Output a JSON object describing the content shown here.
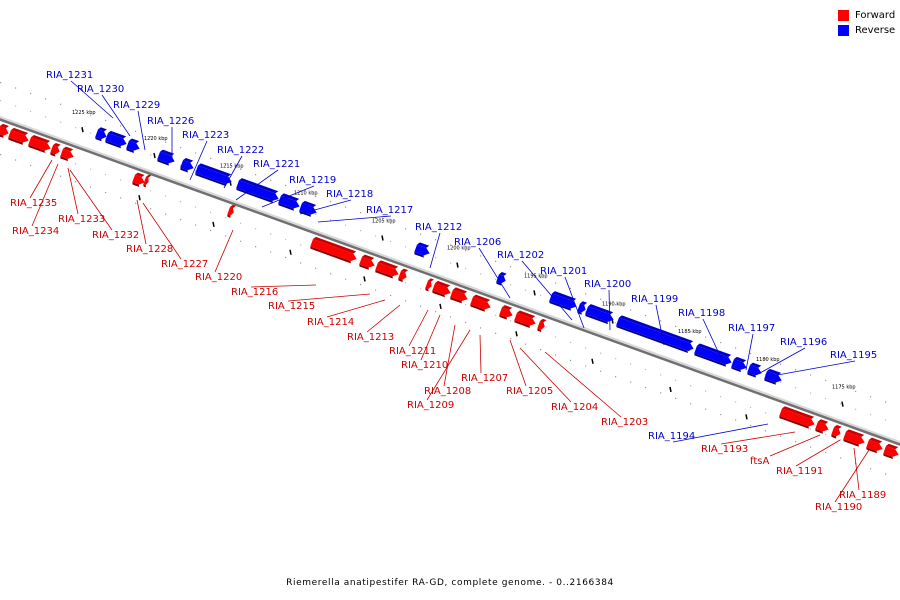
{
  "caption": "Riemerella anatipestifer RA-GD, complete genome. - 0..2166384",
  "legend": {
    "forward_label": "Forward",
    "reverse_label": "Reverse",
    "forward_color": "#ff0000",
    "reverse_color": "#0000ff"
  },
  "colors": {
    "forward": "#ff0000",
    "reverse": "#0000ff",
    "label_forward": "#cc0000",
    "label_reverse": "#0000cc"
  },
  "ticks": [
    "1225 kbp",
    "1220 kbp",
    "1215 kbp",
    "1210 kbp",
    "1205 kbp",
    "1200 kbp",
    "1195 kbp",
    "1190 kbp",
    "1185 kbp",
    "1180 kbp",
    "1175 kbp"
  ],
  "genes_reverse": [
    "RIA_1231",
    "RIA_1230",
    "RIA_1229",
    "RIA_1226",
    "RIA_1223",
    "RIA_1222",
    "RIA_1221",
    "RIA_1219",
    "RIA_1218",
    "RIA_1217",
    "RIA_1212",
    "RIA_1206",
    "RIA_1202",
    "RIA_1201",
    "RIA_1200",
    "RIA_1199",
    "RIA_1198",
    "RIA_1197",
    "RIA_1196",
    "RIA_1195",
    "RIA_1194"
  ],
  "genes_forward": [
    "RIA_1235",
    "RIA_1234",
    "RIA_1233",
    "RIA_1232",
    "RIA_1228",
    "RIA_1227",
    "RIA_1220",
    "RIA_1216",
    "RIA_1215",
    "RIA_1214",
    "RIA_1213",
    "RIA_1211",
    "RIA_1210",
    "RIA_1208",
    "RIA_1209",
    "RIA_1207",
    "RIA_1205",
    "RIA_1204",
    "RIA_1203",
    "RIA_1193",
    "ftsA",
    "RIA_1191",
    "RIA_1189",
    "RIA_1190"
  ]
}
